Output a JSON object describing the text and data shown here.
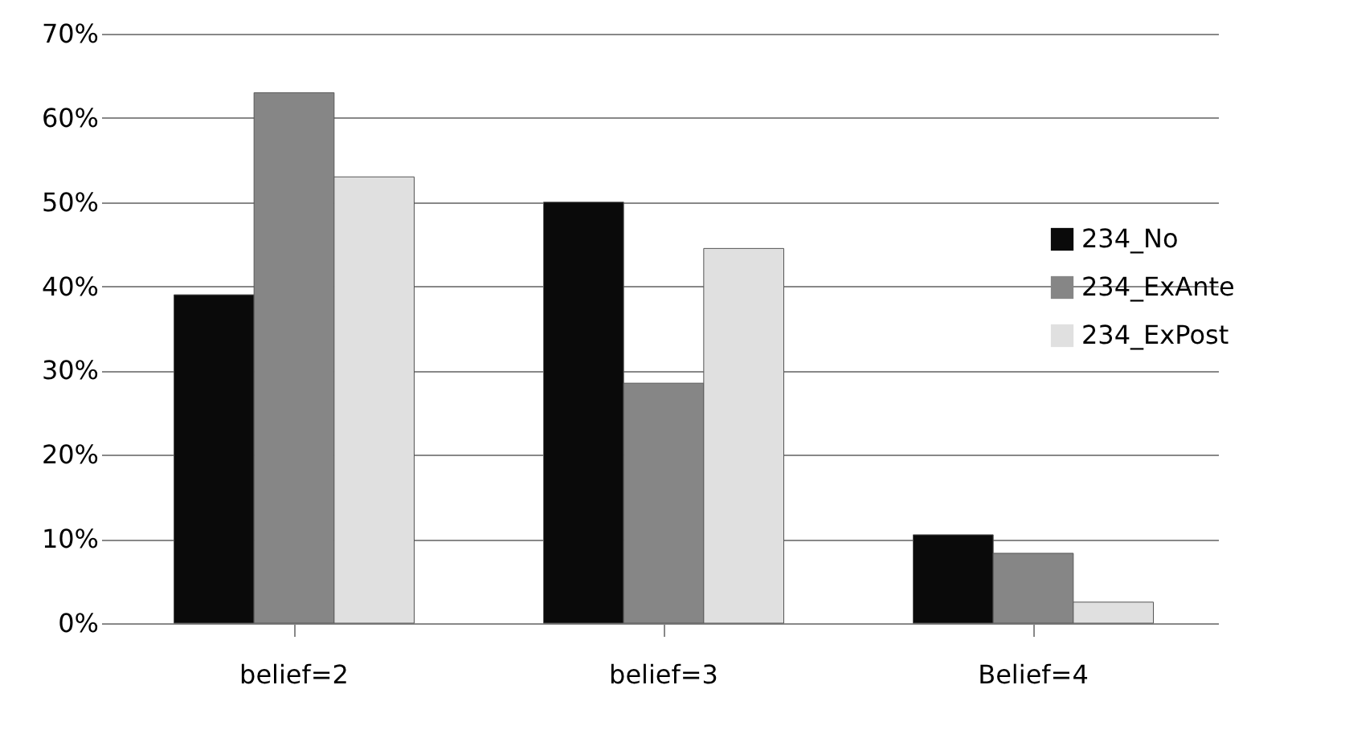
{
  "chart_data": {
    "type": "bar",
    "categories": [
      "belief=2",
      "belief=3",
      "Belief=4"
    ],
    "series": [
      {
        "name": "234_No",
        "color": "#0a0a0a",
        "values": [
          39,
          50,
          10.5
        ]
      },
      {
        "name": "234_ExAnte",
        "color": "#868686",
        "values": [
          63,
          28.5,
          8.3
        ]
      },
      {
        "name": "234_ExPost",
        "color": "#e0e0e0",
        "values": [
          53,
          44.5,
          2.5
        ]
      }
    ],
    "ylim": [
      0,
      70
    ],
    "yticks": [
      {
        "value": 0,
        "label": "0%"
      },
      {
        "value": 10,
        "label": "10%"
      },
      {
        "value": 20,
        "label": "20%"
      },
      {
        "value": 30,
        "label": "30%"
      },
      {
        "value": 40,
        "label": "40%"
      },
      {
        "value": 50,
        "label": "50%"
      },
      {
        "value": 60,
        "label": "60%"
      },
      {
        "value": 70,
        "label": "70%"
      }
    ],
    "grid": "y",
    "legend": "right"
  }
}
